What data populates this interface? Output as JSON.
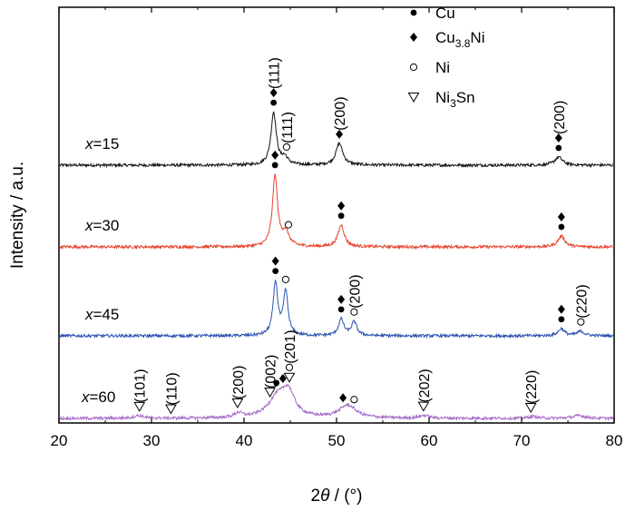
{
  "chart_data": {
    "type": "line",
    "xlabel_main": "2",
    "xlabel_theta": "θ",
    "xlabel_unit": " / (°)",
    "ylabel": "Intensity / a.u.",
    "xlim": [
      20,
      80
    ],
    "xticks": [
      20,
      30,
      40,
      50,
      60,
      70,
      80
    ],
    "y_tick_labels_shown": false,
    "legend": [
      {
        "symbol": "filled-circle",
        "label": "Cu",
        "sub": "",
        "suffix": ""
      },
      {
        "symbol": "filled-diamond",
        "label": "Cu",
        "sub": "3.8",
        "suffix": "Ni"
      },
      {
        "symbol": "open-circle",
        "label": "Ni",
        "sub": "",
        "suffix": ""
      },
      {
        "symbol": "open-triangle-down",
        "label": "Ni",
        "sub": "3",
        "suffix": "Sn"
      }
    ],
    "series": [
      {
        "name": "x=15",
        "label_prefix": "x",
        "label_suffix": "=15",
        "color": "#111111",
        "peaks": [
          {
            "pos": 43.2,
            "height": 58,
            "width": 0.35
          },
          {
            "pos": 44.4,
            "height": 8,
            "width": 0.4
          },
          {
            "pos": 50.3,
            "height": 24,
            "width": 0.45
          },
          {
            "pos": 74.0,
            "height": 9,
            "width": 0.5
          }
        ]
      },
      {
        "name": "x=30",
        "label_prefix": "x",
        "label_suffix": "=30",
        "color": "#e8402a",
        "peaks": [
          {
            "pos": 43.35,
            "height": 78,
            "width": 0.33
          },
          {
            "pos": 44.5,
            "height": 15,
            "width": 0.45
          },
          {
            "pos": 50.5,
            "height": 24,
            "width": 0.4
          },
          {
            "pos": 74.3,
            "height": 12,
            "width": 0.45
          }
        ]
      },
      {
        "name": "x=45",
        "label_prefix": "x",
        "label_suffix": "=45",
        "color": "#2a52b0",
        "peaks": [
          {
            "pos": 43.4,
            "height": 58,
            "width": 0.3
          },
          {
            "pos": 44.5,
            "height": 48,
            "width": 0.3
          },
          {
            "pos": 50.5,
            "height": 18,
            "width": 0.35
          },
          {
            "pos": 51.9,
            "height": 15,
            "width": 0.35
          },
          {
            "pos": 74.3,
            "height": 8,
            "width": 0.4
          },
          {
            "pos": 76.4,
            "height": 5,
            "width": 0.45
          }
        ]
      },
      {
        "name": "x=60",
        "label_prefix": "x",
        "label_suffix": "=60",
        "color": "#a66bc8",
        "peaks": [
          {
            "pos": 28.6,
            "height": 3,
            "width": 0.6
          },
          {
            "pos": 39.4,
            "height": 5,
            "width": 0.5
          },
          {
            "pos": 43.6,
            "height": 22,
            "width": 1.2
          },
          {
            "pos": 44.8,
            "height": 25,
            "width": 0.8
          },
          {
            "pos": 51.2,
            "height": 14,
            "width": 1.1
          },
          {
            "pos": 59.5,
            "height": 3,
            "width": 0.6
          },
          {
            "pos": 71.2,
            "height": 2,
            "width": 0.6
          },
          {
            "pos": 76.2,
            "height": 3,
            "width": 0.8
          }
        ]
      }
    ],
    "annotations": [
      {
        "series": 0,
        "x": 43.2,
        "symbols": [
          "filled-circle",
          "filled-diamond"
        ],
        "text": "(111)"
      },
      {
        "series": 0,
        "x": 44.6,
        "symbols": [
          "open-circle"
        ],
        "text": "(111)"
      },
      {
        "series": 0,
        "x": 50.3,
        "symbols": [
          "filled-diamond"
        ],
        "text": "(200)"
      },
      {
        "series": 0,
        "x": 74.0,
        "symbols": [
          "filled-circle",
          "filled-diamond"
        ],
        "text": "(200)"
      },
      {
        "series": 1,
        "x": 43.35,
        "symbols": [
          "filled-circle",
          "filled-diamond"
        ],
        "text": ""
      },
      {
        "series": 1,
        "x": 44.8,
        "symbols": [
          "open-circle"
        ],
        "text": ""
      },
      {
        "series": 1,
        "x": 50.5,
        "symbols": [
          "filled-circle",
          "filled-diamond"
        ],
        "text": ""
      },
      {
        "series": 1,
        "x": 74.3,
        "symbols": [
          "filled-circle",
          "filled-diamond"
        ],
        "text": ""
      },
      {
        "series": 2,
        "x": 43.4,
        "symbols": [
          "filled-circle",
          "filled-diamond"
        ],
        "text": ""
      },
      {
        "series": 2,
        "x": 44.5,
        "symbols": [
          "open-circle"
        ],
        "text": ""
      },
      {
        "series": 2,
        "x": 50.5,
        "symbols": [
          "filled-circle",
          "filled-diamond"
        ],
        "text": ""
      },
      {
        "series": 2,
        "x": 51.9,
        "symbols": [
          "open-circle"
        ],
        "text": "(200)"
      },
      {
        "series": 2,
        "x": 74.3,
        "symbols": [
          "filled-circle",
          "filled-diamond"
        ],
        "text": ""
      },
      {
        "series": 2,
        "x": 76.4,
        "symbols": [
          "open-circle"
        ],
        "text": "(220)"
      },
      {
        "series": 3,
        "x": 28.7,
        "symbols": [
          "open-triangle-down"
        ],
        "text": "(101)"
      },
      {
        "series": 3,
        "x": 32.1,
        "symbols": [
          "open-triangle-down"
        ],
        "text": "(110)"
      },
      {
        "series": 3,
        "x": 39.3,
        "symbols": [
          "open-triangle-down"
        ],
        "text": "(200)"
      },
      {
        "series": 3,
        "x": 42.8,
        "symbols": [
          "open-triangle-down"
        ],
        "text": "(002)"
      },
      {
        "series": 3,
        "x": 43.5,
        "symbols": [
          "filled-circle"
        ],
        "text": ""
      },
      {
        "series": 3,
        "x": 44.2,
        "symbols": [
          "filled-diamond"
        ],
        "text": ""
      },
      {
        "series": 3,
        "x": 44.9,
        "symbols": [
          "open-triangle-down",
          "open-circle"
        ],
        "text": "(201)"
      },
      {
        "series": 3,
        "x": 50.7,
        "symbols": [
          "filled-diamond"
        ],
        "text": ""
      },
      {
        "series": 3,
        "x": 51.9,
        "symbols": [
          "open-circle"
        ],
        "text": ""
      },
      {
        "series": 3,
        "x": 59.4,
        "symbols": [
          "open-triangle-down"
        ],
        "text": "(202)"
      },
      {
        "series": 3,
        "x": 71.0,
        "symbols": [
          "open-triangle-down"
        ],
        "text": "(220)"
      }
    ]
  }
}
